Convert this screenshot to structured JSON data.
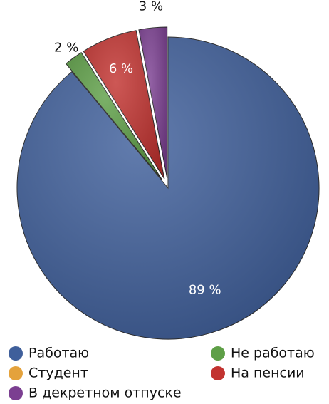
{
  "chart_data": {
    "type": "pie",
    "categories": [
      "Работаю",
      "Не работаю",
      "Студент",
      "На пенсии",
      "В декретном отпуске"
    ],
    "values": [
      89,
      2,
      0,
      6,
      3
    ],
    "value_labels": [
      "89 %",
      "2 %",
      null,
      "6 %",
      "3 %"
    ],
    "colors": [
      "#3f5f9b",
      "#5e9f47",
      "#e4a23c",
      "#c23330",
      "#7b3f91"
    ],
    "start_angle": 0,
    "direction": "clockwise",
    "legend": "bottom"
  }
}
